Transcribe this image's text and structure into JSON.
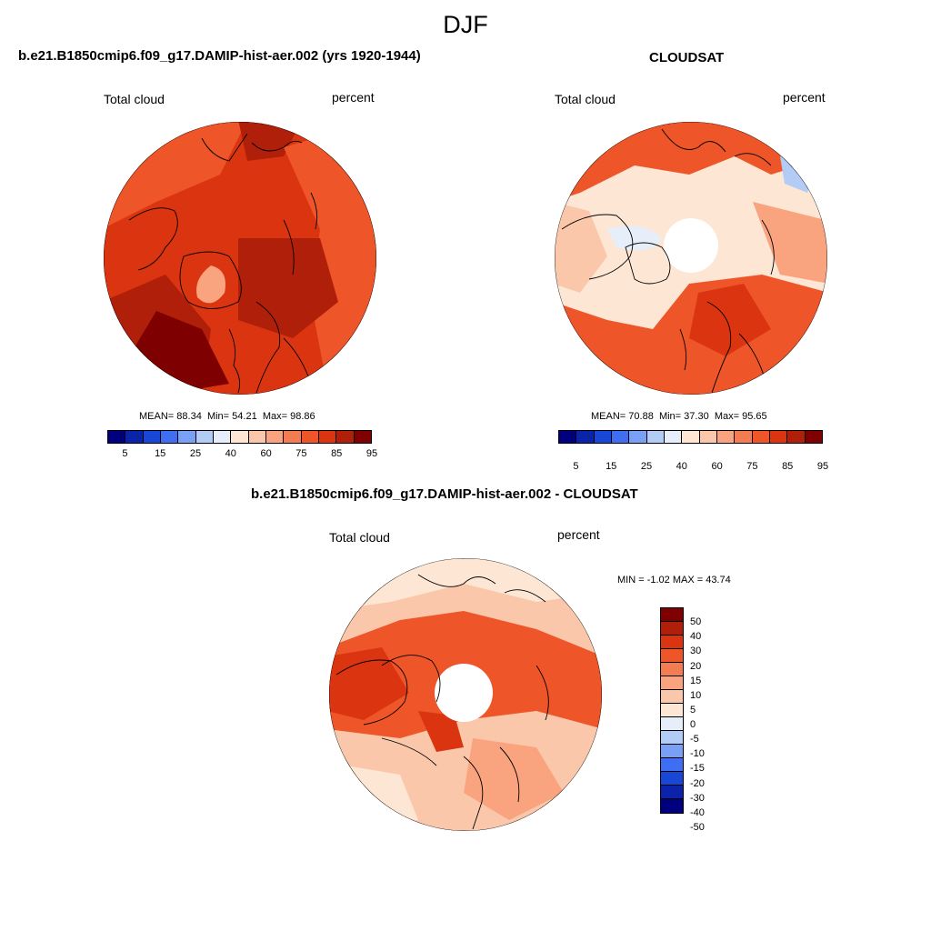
{
  "figure": {
    "super_title": "DJF"
  },
  "panels": [
    {
      "title": "b.e21.B1850cmip6.f09_g17.DAMIP-hist-aer.002 (yrs 1920-1944)",
      "left_label": "Total cloud",
      "right_label": "percent",
      "stats": {
        "mean_label": "MEAN=",
        "mean": "88.34",
        "min_label": "Min=",
        "min": "54.21",
        "max_label": "Max=",
        "max": "98.86"
      },
      "colorbar_ticks": [
        "5",
        "15",
        "25",
        "40",
        "60",
        "75",
        "85",
        "95"
      ]
    },
    {
      "title": "CLOUDSAT",
      "left_label": "Total cloud",
      "right_label": "percent",
      "stats": {
        "mean_label": "MEAN=",
        "mean": "70.88",
        "min_label": "Min=",
        "min": "37.30",
        "max_label": "Max=",
        "max": "95.65"
      },
      "colorbar_ticks": [
        "5",
        "15",
        "25",
        "40",
        "60",
        "75",
        "85",
        "95"
      ]
    },
    {
      "title": "b.e21.B1850cmip6.f09_g17.DAMIP-hist-aer.002 - CLOUDSAT",
      "left_label": "Total cloud",
      "right_label": "percent",
      "minmax_text": "MIN =  -1.02 MAX =  43.74",
      "colorbar_ticks": [
        "50",
        "40",
        "30",
        "20",
        "15",
        "10",
        "5",
        "0",
        "-5",
        "-10",
        "-15",
        "-20",
        "-30",
        "-40",
        "-50"
      ]
    }
  ],
  "colors": {
    "abs_palette": [
      "#00007f",
      "#0a23a8",
      "#1847d6",
      "#3e6ef2",
      "#7aa0f5",
      "#b3ccf6",
      "#e6eef9",
      "#fde6d4",
      "#fbc7ab",
      "#f9a47f",
      "#f47c52",
      "#ee5528",
      "#db3410",
      "#b01f09",
      "#7f0000"
    ],
    "diff_palette": [
      "#7f0000",
      "#b01f09",
      "#db3410",
      "#ee5528",
      "#f47c52",
      "#f9a47f",
      "#fbc7ab",
      "#fde6d4",
      "#e6eef9",
      "#b3ccf6",
      "#7aa0f5",
      "#3e6ef2",
      "#1847d6",
      "#0a23a8",
      "#00007f"
    ],
    "land_outline": "#000000"
  }
}
